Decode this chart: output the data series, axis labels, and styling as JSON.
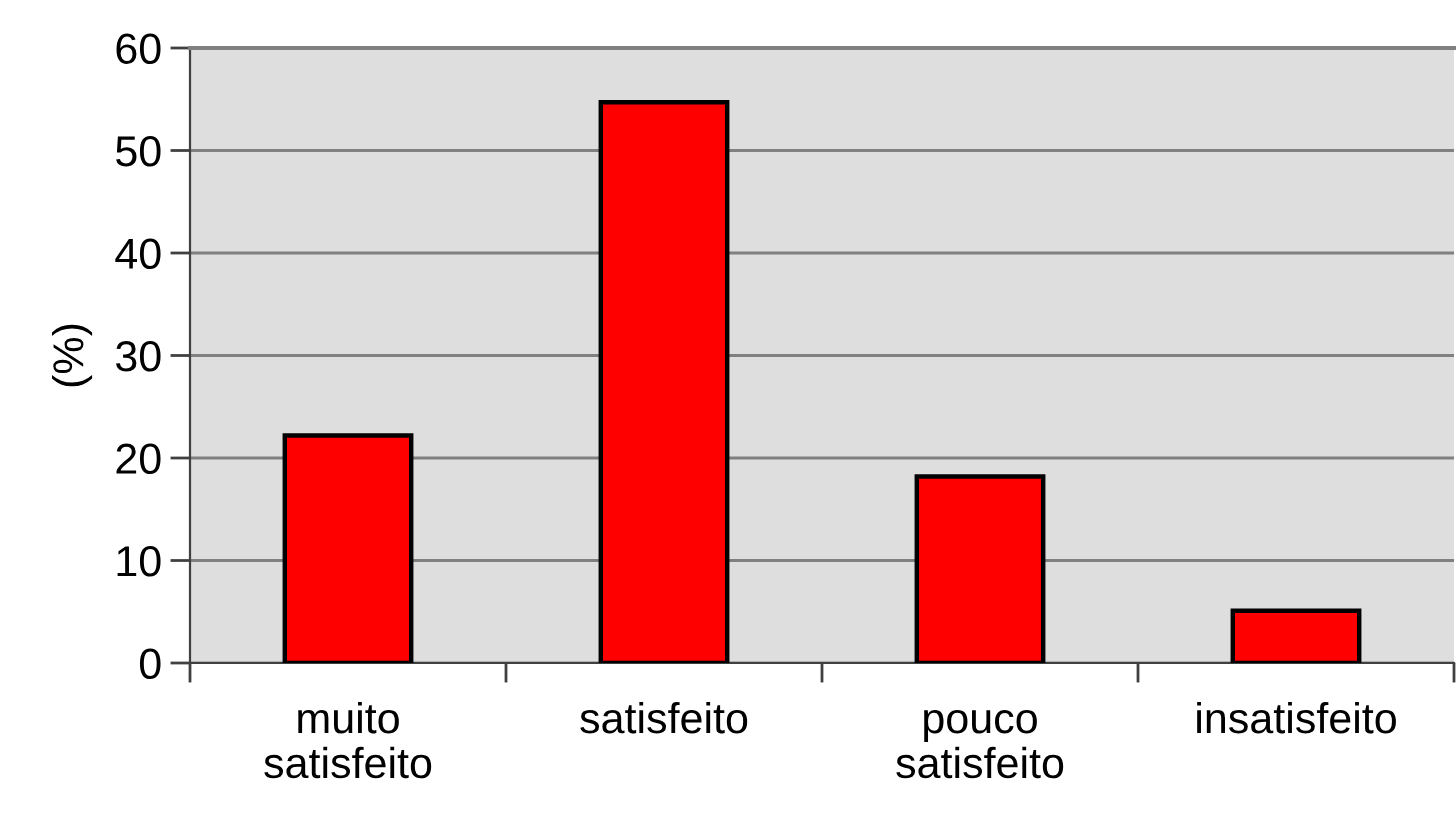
{
  "chart_data": {
    "type": "bar",
    "ylabel": "(%)",
    "categories": [
      "muito\nsatisfeito",
      "satisfeito",
      "pouco\nsatisfeito",
      "insatisfeito"
    ],
    "values": [
      22.2,
      54.7,
      18.2,
      5.1
    ],
    "color": "#ff0000",
    "ylim": [
      0,
      60
    ],
    "yticks": [
      0,
      10,
      20,
      30,
      40,
      50,
      60
    ],
    "grid": "y"
  }
}
